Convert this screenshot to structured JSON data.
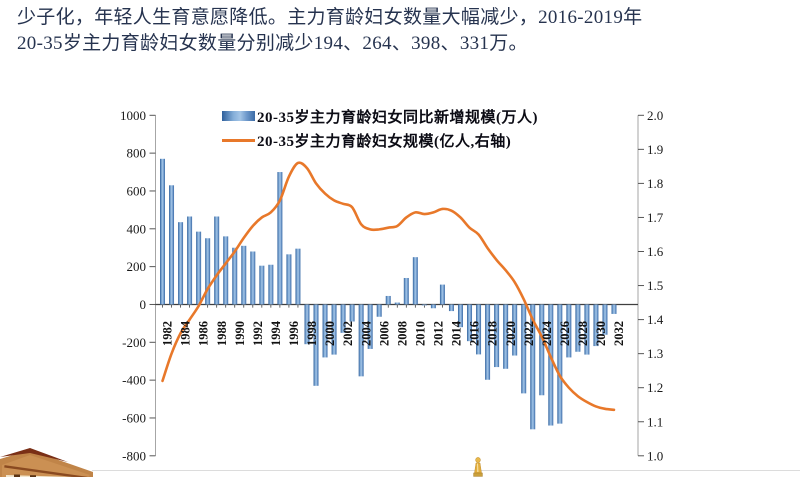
{
  "headline": {
    "line1": "少子化，年轻人生育意愿降低。主力育龄妇女数量大幅减少，2016-2019年",
    "line2": "20-35岁主力育龄妇女数量分别减少194、264、398、331万。"
  },
  "legend": {
    "bar_label": "20-35岁主力育龄妇女同比新增规模(万人)",
    "line_label": "20-35岁主力育龄妇女规模(亿人,右轴)"
  },
  "chart_data": {
    "type": "bar",
    "subtype": "bar+line dual-axis combo",
    "categories": [
      1982,
      1983,
      1984,
      1985,
      1986,
      1987,
      1988,
      1989,
      1990,
      1991,
      1992,
      1993,
      1994,
      1995,
      1996,
      1997,
      1998,
      1999,
      2000,
      2001,
      2002,
      2003,
      2004,
      2005,
      2006,
      2007,
      2008,
      2009,
      2010,
      2011,
      2012,
      2013,
      2014,
      2015,
      2016,
      2017,
      2018,
      2019,
      2020,
      2021,
      2022,
      2023,
      2024,
      2025,
      2026,
      2027,
      2028,
      2029,
      2030,
      2031,
      2032
    ],
    "series": [
      {
        "name": "20-35岁主力育龄妇女同比新增规模(万人)",
        "type": "bar",
        "axis": "left",
        "values": [
          770,
          630,
          435,
          465,
          385,
          350,
          465,
          360,
          300,
          310,
          280,
          205,
          210,
          700,
          265,
          295,
          -210,
          -430,
          -280,
          -265,
          -150,
          -90,
          -380,
          -235,
          -65,
          45,
          10,
          140,
          250,
          -5,
          -20,
          105,
          -35,
          -120,
          -194,
          -264,
          -398,
          -331,
          -340,
          -270,
          -470,
          -660,
          -480,
          -640,
          -630,
          -280,
          -250,
          -265,
          -220,
          -160,
          -50
        ]
      },
      {
        "name": "20-35岁主力育龄妇女规模(亿人,右轴)",
        "type": "line",
        "axis": "right",
        "values": [
          1.22,
          1.3,
          1.36,
          1.4,
          1.44,
          1.49,
          1.53,
          1.565,
          1.6,
          1.64,
          1.675,
          1.7,
          1.715,
          1.75,
          1.82,
          1.86,
          1.845,
          1.8,
          1.77,
          1.75,
          1.74,
          1.73,
          1.68,
          1.665,
          1.665,
          1.67,
          1.675,
          1.7,
          1.715,
          1.71,
          1.715,
          1.725,
          1.72,
          1.7,
          1.67,
          1.65,
          1.61,
          1.575,
          1.545,
          1.51,
          1.46,
          1.4,
          1.35,
          1.29,
          1.235,
          1.2,
          1.175,
          1.158,
          1.145,
          1.138,
          1.135
        ]
      }
    ],
    "left_axis": {
      "ylim": [
        -800,
        1000
      ],
      "tick_labels": [
        "1000",
        "800",
        "600",
        "400",
        "200",
        "0",
        "-200",
        "-400",
        "-600",
        "-800"
      ]
    },
    "right_axis": {
      "ylim": [
        1.0,
        2.0
      ],
      "tick_labels": [
        "2.0",
        "1.9",
        "1.8",
        "1.7",
        "1.6",
        "1.5",
        "1.4",
        "1.3",
        "1.2",
        "1.1",
        "1.0"
      ]
    },
    "x_tick_labels": [
      "1982",
      "1984",
      "1986",
      "1988",
      "1990",
      "1992",
      "1994",
      "1996",
      "1998",
      "2000",
      "2002",
      "2004",
      "2006",
      "2008",
      "2010",
      "2012",
      "2014",
      "2016",
      "2018",
      "2020",
      "2022",
      "2024",
      "2026",
      "2028",
      "2030",
      "2032"
    ],
    "grid": "off",
    "legend_position": "top-inside",
    "colors": {
      "bar_gradient": [
        "#2f609c",
        "#86afd9",
        "#a3c4e6",
        "#6e99cb",
        "#3c6ba6"
      ],
      "line": "#e8782a",
      "axis_line": "#a6a6a6",
      "zero_axis": "#3f3f3f",
      "headline_text": "#26334f"
    }
  },
  "decor": {
    "bottom_left": "building-photo-fragment",
    "bottom_center": "gold-figurine"
  }
}
